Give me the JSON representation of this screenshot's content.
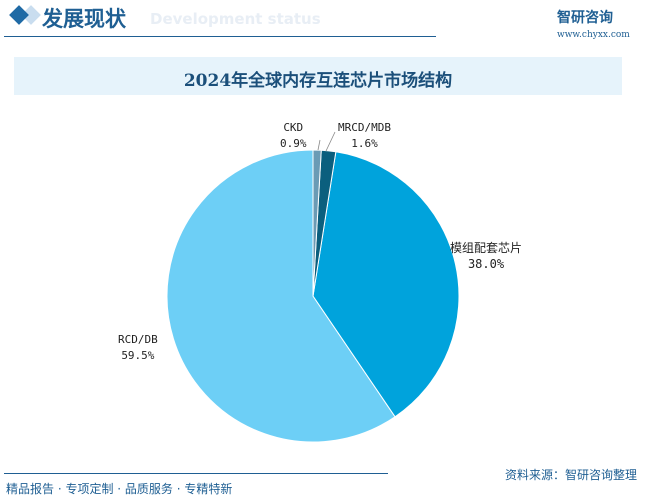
{
  "header": {
    "title": "发展现状",
    "subtitle": "Development status",
    "logo": "智研咨询",
    "url": "www.chyxx.com"
  },
  "footer": {
    "left": "精品报告 · 专项定制 · 品质服务 · 专精特新",
    "source": "资料来源：智研咨询整理"
  },
  "chart_data": {
    "type": "pie",
    "title": "2024年全球内存互连芯片市场结构",
    "slices": [
      {
        "name": "CKD",
        "value": 0.9,
        "label": "0.9%",
        "color": "#6a9bb5"
      },
      {
        "name": "MRCD/MDB",
        "value": 1.6,
        "label": "1.6%",
        "color": "#0b5f7e"
      },
      {
        "name": "模组配套芯片",
        "value": 38.0,
        "label": "38.0%",
        "color": "#00a3dc"
      },
      {
        "name": "RCD/DB",
        "value": 59.5,
        "label": "59.5%",
        "color": "#6dcff6"
      }
    ],
    "start": "top",
    "direction": "clockwise"
  }
}
